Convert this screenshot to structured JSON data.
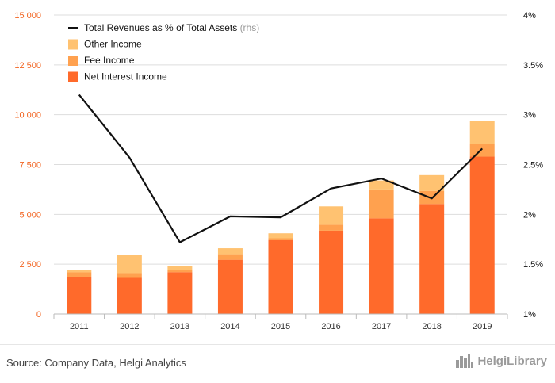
{
  "colors": {
    "net_interest": "#ff6a2b",
    "fee": "#ffa14f",
    "other": "#ffc271",
    "line": "#111111",
    "left_axis_text": "#f26522",
    "right_axis_text": "#111111",
    "grid": "#dddddd",
    "source_text": "#444444",
    "brand": "#9a9a9a"
  },
  "chart_data": {
    "type": "bar",
    "stacked": true,
    "title": "",
    "xlabel": "",
    "ylabel": "",
    "categories": [
      "2011",
      "2012",
      "2013",
      "2014",
      "2015",
      "2016",
      "2017",
      "2018",
      "2019"
    ],
    "ylim": [
      0,
      15000
    ],
    "y_ticks": [
      "0",
      "2 500",
      "5 000",
      "7 500",
      "10 000",
      "12 500",
      "15 000"
    ],
    "y2lim": [
      1,
      4
    ],
    "y2_ticks": [
      "1%",
      "1.5%",
      "2%",
      "2.5%",
      "3%",
      "3.5%",
      "4%"
    ],
    "grid": true,
    "legend_position": "top-left",
    "series": [
      {
        "name": "Net Interest Income",
        "type": "bar",
        "color": "#ff6a2b",
        "values": [
          1870,
          1850,
          2100,
          2720,
          3700,
          4180,
          4800,
          5520,
          7900
        ]
      },
      {
        "name": "Fee Income",
        "type": "bar",
        "color": "#ffa14f",
        "values": [
          220,
          200,
          120,
          280,
          100,
          300,
          1450,
          650,
          650
        ]
      },
      {
        "name": "Other Income",
        "type": "bar",
        "color": "#ffc271",
        "values": [
          120,
          900,
          200,
          300,
          250,
          920,
          450,
          800,
          1150
        ]
      },
      {
        "name": "Total Revenues as % of Total Assets",
        "type": "line",
        "axis": "right",
        "color": "#111111",
        "values": [
          3.2,
          2.57,
          1.72,
          1.98,
          1.97,
          2.26,
          2.36,
          2.16,
          2.66
        ]
      }
    ],
    "legend": [
      {
        "label": "Total Revenues as % of Total Assets",
        "suffix": "(rhs)",
        "kind": "line",
        "color": "#111111"
      },
      {
        "label": "Other Income",
        "kind": "box",
        "color": "#ffc271"
      },
      {
        "label": "Fee Income",
        "kind": "box",
        "color": "#ffa14f"
      },
      {
        "label": "Net Interest Income",
        "kind": "box",
        "color": "#ff6a2b"
      }
    ]
  },
  "footer": {
    "source": "Source: Company Data, Helgi Analytics",
    "brand_name": "HelgiLibrary",
    "brand_icon": "city-skyline-icon"
  }
}
